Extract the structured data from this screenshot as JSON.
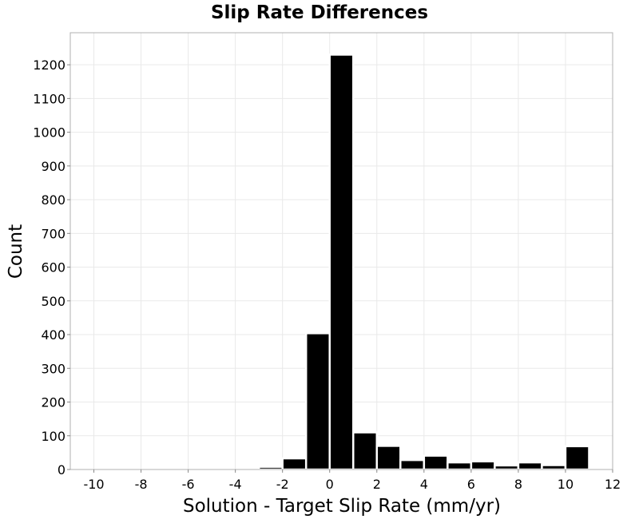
{
  "chart_data": {
    "type": "bar",
    "title": "Slip Rate Differences",
    "xlabel": "Solution - Target Slip Rate (mm/yr)",
    "ylabel": "Count",
    "xlim": [
      -11,
      12
    ],
    "ylim": [
      0,
      1295
    ],
    "xticks": [
      -10,
      -8,
      -6,
      -4,
      -2,
      0,
      2,
      4,
      6,
      8,
      10,
      12
    ],
    "yticks": [
      0,
      100,
      200,
      300,
      400,
      500,
      600,
      700,
      800,
      900,
      1000,
      1100,
      1200
    ],
    "grid": true,
    "bin_width": 1,
    "bins": [
      {
        "x": -10,
        "value": 0
      },
      {
        "x": -9,
        "value": 0
      },
      {
        "x": -8,
        "value": 0
      },
      {
        "x": -7,
        "value": 0
      },
      {
        "x": -6,
        "value": 0
      },
      {
        "x": -5,
        "value": 0
      },
      {
        "x": -4,
        "value": 0
      },
      {
        "x": -3,
        "value": 0
      },
      {
        "x": -2.5,
        "value": 8
      },
      {
        "x": -1.5,
        "value": 33
      },
      {
        "x": -0.5,
        "value": 404
      },
      {
        "x": 0.5,
        "value": 1230
      },
      {
        "x": 1.5,
        "value": 110
      },
      {
        "x": 2.5,
        "value": 70
      },
      {
        "x": 3.5,
        "value": 28
      },
      {
        "x": 4.5,
        "value": 41
      },
      {
        "x": 5.5,
        "value": 21
      },
      {
        "x": 6.5,
        "value": 24
      },
      {
        "x": 7.5,
        "value": 12
      },
      {
        "x": 8.5,
        "value": 21
      },
      {
        "x": 9.5,
        "value": 13
      },
      {
        "x": 10.5,
        "value": 69
      }
    ],
    "colors": {
      "bar": "#000000",
      "bar_edge": "#ffffff",
      "grid": "#e9e9e9",
      "frame": "#b0b0b0"
    }
  }
}
